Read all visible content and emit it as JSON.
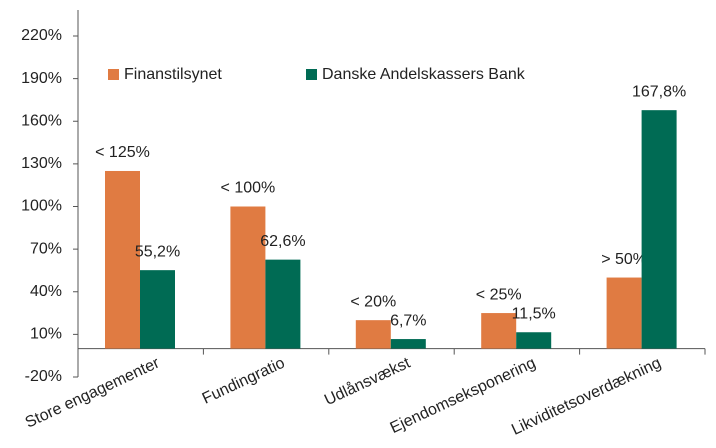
{
  "chart_data": {
    "type": "bar",
    "categories": [
      "Store engagementer",
      "Fundingratio",
      "Udlånsvækst",
      "Ejendomseksponering",
      "Likviditetsoverdækning"
    ],
    "series": [
      {
        "name": "Finanstilsynet",
        "color": "#e07b42",
        "values": [
          125,
          100,
          20,
          25,
          50
        ],
        "value_labels": [
          "< 125%",
          "< 100%",
          "< 20%",
          "< 25%",
          "> 50%"
        ]
      },
      {
        "name": "Danske Andelskassers Bank",
        "color": "#006b54",
        "values": [
          55.2,
          62.6,
          6.7,
          11.5,
          167.8
        ],
        "value_labels": [
          "55,2%",
          "62,6%",
          "6,7%",
          "11,5%",
          "167,8%"
        ]
      }
    ],
    "ylim": [
      -20,
      220
    ],
    "yticks": [
      {
        "value": -20,
        "label": "-20%"
      },
      {
        "value": 10,
        "label": "10%"
      },
      {
        "value": 40,
        "label": "40%"
      },
      {
        "value": 70,
        "label": "70%"
      },
      {
        "value": 100,
        "label": "100%"
      },
      {
        "value": 130,
        "label": "130%"
      },
      {
        "value": 160,
        "label": "160%"
      },
      {
        "value": 190,
        "label": "190%"
      },
      {
        "value": 220,
        "label": "220%"
      }
    ],
    "legend": "top"
  }
}
